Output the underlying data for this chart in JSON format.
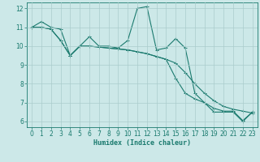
{
  "title": "",
  "xlabel": "Humidex (Indice chaleur)",
  "ylabel": "",
  "bg_color": "#cce8e8",
  "grid_color": "#aacccc",
  "line_color": "#1a7a6e",
  "spine_color": "#1a7a6e",
  "xlim": [
    -0.5,
    23.5
  ],
  "ylim": [
    5.7,
    12.3
  ],
  "yticks": [
    6,
    7,
    8,
    9,
    10,
    11,
    12
  ],
  "xticks": [
    0,
    1,
    2,
    3,
    4,
    5,
    6,
    7,
    8,
    9,
    10,
    11,
    12,
    13,
    14,
    15,
    16,
    17,
    18,
    19,
    20,
    21,
    22,
    23
  ],
  "series": [
    [
      11.0,
      11.3,
      11.0,
      10.9,
      9.5,
      10.0,
      10.5,
      10.0,
      10.0,
      9.9,
      10.3,
      12.0,
      12.1,
      9.8,
      9.9,
      10.4,
      9.9,
      7.5,
      7.0,
      6.5,
      6.5,
      6.5,
      6.0,
      6.5
    ],
    [
      11.0,
      11.0,
      10.9,
      10.3,
      9.5,
      10.0,
      10.0,
      9.95,
      9.9,
      9.85,
      9.8,
      9.7,
      9.6,
      9.45,
      9.3,
      9.1,
      8.6,
      8.0,
      7.5,
      7.1,
      6.8,
      6.65,
      6.55,
      6.45
    ],
    [
      11.0,
      11.0,
      10.9,
      10.3,
      9.5,
      10.0,
      10.0,
      9.95,
      9.9,
      9.85,
      9.8,
      9.7,
      9.6,
      9.45,
      9.3,
      8.3,
      7.5,
      7.2,
      7.0,
      6.7,
      6.55,
      6.55,
      6.05,
      6.5
    ]
  ],
  "xlabel_fontsize": 6.0,
  "tick_fontsize": 5.5,
  "linewidth": 0.8,
  "marker": "+",
  "markersize": 2.5,
  "markeredgewidth": 0.7
}
